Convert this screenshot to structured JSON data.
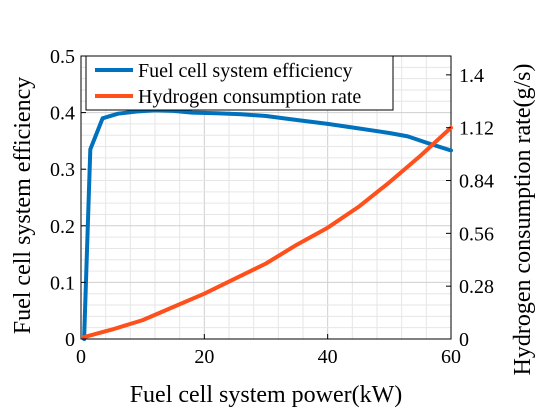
{
  "chart_data": {
    "type": "line",
    "xlabel": "Fuel cell system power(kW)",
    "ylabel_left": "Fuel cell system efficiency",
    "ylabel_right": "Hydrogen consumption rate(g/s)",
    "xlim": [
      0,
      60
    ],
    "ylim_left": [
      0,
      0.5
    ],
    "ylim_right": [
      0,
      1.5
    ],
    "x_ticks": [
      "0",
      "20",
      "40",
      "60"
    ],
    "y_left_ticks": [
      "0",
      "0.1",
      "0.2",
      "0.3",
      "0.4",
      "0.5"
    ],
    "y_right_ticks": [
      "0",
      "0.28",
      "0.56",
      "0.84",
      "1.12",
      "1.4"
    ],
    "grid": true,
    "legend_position": "top-left",
    "series": [
      {
        "name": "Fuel cell system efficiency",
        "axis": "left",
        "color": "#0072BD",
        "x": [
          0.5,
          1.5,
          3.5,
          6,
          9,
          12,
          15,
          18,
          22,
          26,
          30,
          35,
          40,
          45,
          50,
          53,
          56,
          60
        ],
        "y": [
          0.0,
          0.335,
          0.39,
          0.398,
          0.402,
          0.404,
          0.403,
          0.4,
          0.399,
          0.397,
          0.394,
          0.387,
          0.38,
          0.372,
          0.364,
          0.358,
          0.347,
          0.333
        ]
      },
      {
        "name": "Hydrogen consumption rate",
        "axis": "right",
        "color": "#FF4F1A",
        "x": [
          0.5,
          5,
          10,
          15,
          20,
          25,
          30,
          35,
          40,
          45,
          50,
          55,
          60
        ],
        "y": [
          0.01,
          0.05,
          0.1,
          0.17,
          0.24,
          0.32,
          0.4,
          0.5,
          0.59,
          0.7,
          0.83,
          0.97,
          1.12
        ]
      }
    ]
  }
}
